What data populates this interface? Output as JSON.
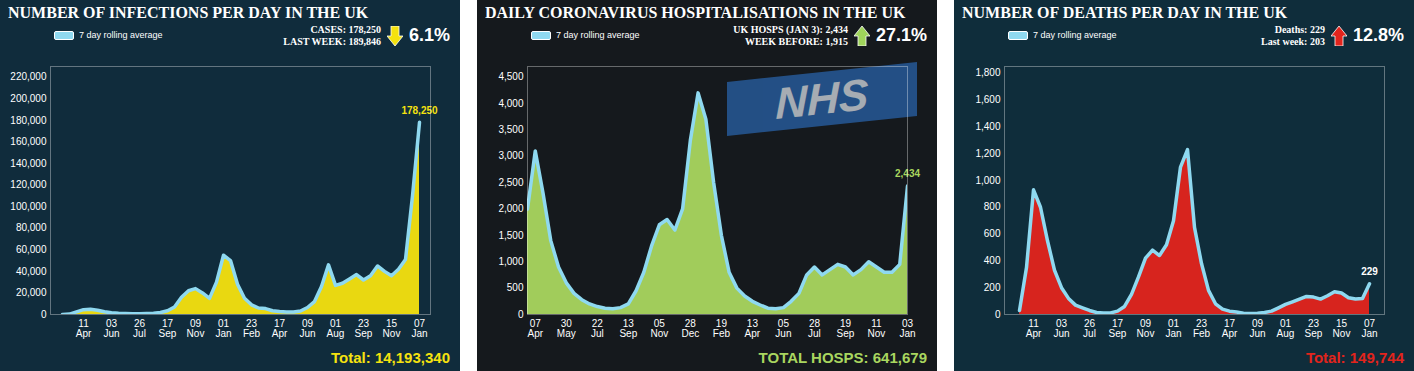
{
  "chart_data": [
    {
      "type": "area",
      "title": "NUMBER OF INFECTIONS PER DAY IN THE UK",
      "stats": {
        "lines": [
          "CASES: 178,250",
          "LAST WEEK: 189,846"
        ],
        "change": "6.1%",
        "arrow": "down",
        "color": "#f5e20f"
      },
      "caption": "Total: 14,193,340",
      "color": "#f5e20f",
      "legend": "top-left",
      "grid": false,
      "categories": [
        null,
        null,
        null,
        "11 Apr",
        null,
        null,
        null,
        "03 Jun",
        null,
        null,
        null,
        "26 Jul",
        null,
        null,
        null,
        "17 Sep",
        null,
        null,
        null,
        "09 Nov",
        null,
        null,
        null,
        "01 Jan",
        null,
        null,
        null,
        "23 Feb",
        null,
        null,
        null,
        "17 Apr",
        null,
        null,
        null,
        "09 Jun",
        null,
        null,
        null,
        "01 Aug",
        null,
        null,
        null,
        "23 Sep",
        null,
        null,
        null,
        "15 Nov",
        null,
        null,
        null,
        "07 Jan"
      ],
      "series": [
        {
          "name": "7 day rolling average",
          "color": "#8fd9f0",
          "values": [
            50,
            400,
            2500,
            4500,
            4800,
            4000,
            2500,
            1600,
            1100,
            900,
            650,
            700,
            900,
            1100,
            1800,
            3500,
            7000,
            16000,
            22000,
            24000,
            20000,
            15000,
            30000,
            55000,
            50000,
            28000,
            15000,
            9000,
            6000,
            5500,
            3500,
            2800,
            2300,
            2300,
            3200,
            6500,
            12000,
            26000,
            46000,
            27000,
            29000,
            33000,
            37000,
            32000,
            36000,
            45000,
            40000,
            36000,
            42000,
            51000,
            110000,
            178250
          ]
        }
      ],
      "ylim": [
        0,
        230000
      ],
      "yticks": [
        0,
        {
          "value": 20000,
          "label": "20,000"
        },
        {
          "value": 40000,
          "label": "40,000"
        },
        {
          "value": 60000,
          "label": "60,000"
        },
        {
          "value": 80000,
          "label": "80,000"
        },
        {
          "value": 100000,
          "label": "100,000"
        },
        {
          "value": 120000,
          "label": "120,000"
        },
        {
          "value": 140000,
          "label": "140,000"
        },
        {
          "value": 160000,
          "label": "160,000"
        },
        {
          "value": 180000,
          "label": "180,000"
        },
        {
          "value": 200000,
          "label": "200,000"
        },
        {
          "value": 220000,
          "label": "220,000"
        }
      ],
      "annotations": [
        {
          "text": "178,250",
          "x": "07 Jan",
          "y": 178250,
          "color": "#f5e20f"
        }
      ]
    },
    {
      "type": "area",
      "title": "DAILY CORONAVIRUS HOSPITALISATIONS IN THE UK",
      "stats": {
        "lines": [
          "UK HOSPS (JAN 3): 2,434",
          "WEEK BEFORE: 1,915"
        ],
        "change": "27.1%",
        "arrow": "up",
        "color": "#9fd45b"
      },
      "caption": "TOTAL HOSPS: 641,679",
      "watermark": "NHS",
      "color": "#a9d65f",
      "legend": "top-left",
      "grid": false,
      "categories": [
        null,
        "07 Apr",
        null,
        null,
        null,
        "30 May",
        null,
        null,
        null,
        "22 Jul",
        null,
        null,
        null,
        "13 Sep",
        null,
        null,
        null,
        "05 Nov",
        null,
        null,
        null,
        "28 Dec",
        null,
        null,
        null,
        "19 Feb",
        null,
        null,
        null,
        "13 Apr",
        null,
        null,
        null,
        "05 Jun",
        null,
        null,
        null,
        "28 Jul",
        null,
        null,
        null,
        "19 Sep",
        null,
        null,
        null,
        "11 Nov",
        null,
        null,
        null,
        "03 Jan"
      ],
      "series": [
        {
          "name": "7 day rolling average",
          "color": "#8fd9f0",
          "values": [
            2000,
            3100,
            2300,
            1400,
            900,
            600,
            400,
            280,
            200,
            150,
            120,
            110,
            130,
            200,
            450,
            800,
            1300,
            1700,
            1800,
            1600,
            2000,
            3300,
            4200,
            3700,
            2500,
            1500,
            800,
            500,
            350,
            250,
            180,
            120,
            110,
            130,
            250,
            400,
            750,
            900,
            750,
            850,
            950,
            900,
            750,
            850,
            1000,
            900,
            800,
            800,
            950,
            2434
          ]
        }
      ],
      "ylim": [
        0,
        4700
      ],
      "yticks": [
        0,
        500,
        {
          "value": 1000,
          "label": "1,000"
        },
        {
          "value": 1500,
          "label": "1,500"
        },
        {
          "value": 2000,
          "label": "2,000"
        },
        {
          "value": 2500,
          "label": "2,500"
        },
        {
          "value": 3000,
          "label": "3,000"
        },
        {
          "value": 3500,
          "label": "3,500"
        },
        {
          "value": 4000,
          "label": "4,000"
        },
        {
          "value": 4500,
          "label": "4,500"
        }
      ],
      "annotations": [
        {
          "text": "2,434",
          "x": "03 Jan",
          "y": 2434,
          "color": "#a9d65f"
        }
      ]
    },
    {
      "type": "area",
      "title": "NUMBER OF DEATHS PER DAY IN THE UK",
      "stats": {
        "lines": [
          "Deaths: 229",
          "Last week: 203"
        ],
        "change": "12.8%",
        "arrow": "up",
        "color": "#e3241c"
      },
      "caption": "Total: 149,744",
      "color": "#e3241c",
      "legend": "top-left",
      "grid": false,
      "categories": [
        null,
        null,
        "11 Apr",
        null,
        null,
        null,
        "03 Jun",
        null,
        null,
        null,
        "26 Jul",
        null,
        null,
        null,
        "17 Sep",
        null,
        null,
        null,
        "09 Nov",
        null,
        null,
        null,
        "01 Jan",
        null,
        null,
        null,
        "23 Feb",
        null,
        null,
        null,
        "17 Apr",
        null,
        null,
        null,
        "09 Jun",
        null,
        null,
        null,
        "01 Aug",
        null,
        null,
        null,
        "23 Sep",
        null,
        null,
        null,
        "15 Nov",
        null,
        null,
        null,
        "07 Jan"
      ],
      "series": [
        {
          "name": "7 day rolling average",
          "color": "#8fd9f0",
          "values": [
            30,
            350,
            930,
            800,
            550,
            330,
            200,
            120,
            70,
            50,
            30,
            15,
            12,
            12,
            25,
            60,
            150,
            280,
            420,
            480,
            440,
            520,
            700,
            1100,
            1230,
            650,
            380,
            180,
            80,
            40,
            25,
            18,
            10,
            8,
            10,
            15,
            25,
            50,
            75,
            95,
            115,
            135,
            130,
            115,
            140,
            170,
            160,
            125,
            115,
            120,
            229
          ]
        }
      ],
      "ylim": [
        0,
        1850
      ],
      "yticks": [
        0,
        200,
        400,
        600,
        800,
        {
          "value": 1000,
          "label": "1,000"
        },
        {
          "value": 1200,
          "label": "1,200"
        },
        {
          "value": 1400,
          "label": "1,400"
        },
        {
          "value": 1600,
          "label": "1,600"
        },
        {
          "value": 1800,
          "label": "1,800"
        }
      ],
      "annotations": [
        {
          "text": "229",
          "x": "07 Jan",
          "y": 229,
          "color": "#ffffff"
        }
      ]
    }
  ]
}
